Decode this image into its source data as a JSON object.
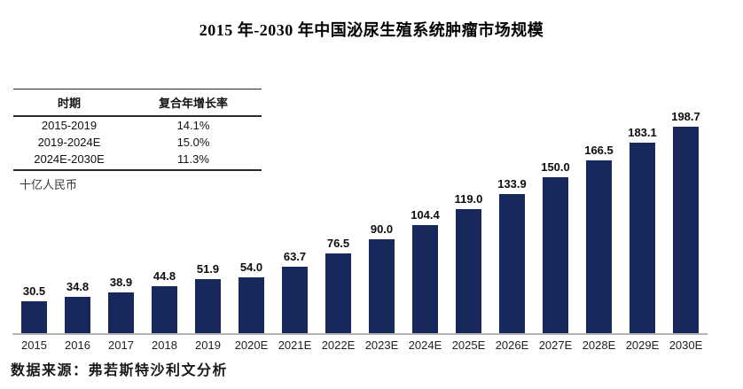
{
  "source_note": "数据来源：弗若斯特沙利文分析",
  "cagr_table": {
    "headers": [
      "时期",
      "复合年增长率"
    ],
    "rows": [
      [
        "2015-2019",
        "14.1%"
      ],
      [
        "2019-2024E",
        "15.0%"
      ],
      [
        "2024E-2030E",
        "11.3%"
      ]
    ]
  },
  "chart_data": {
    "type": "bar",
    "title": "2015 年-2030 年中国泌尿生殖系统肿瘤市场规模",
    "categories": [
      "2015",
      "2016",
      "2017",
      "2018",
      "2019",
      "2020E",
      "2021E",
      "2022E",
      "2023E",
      "2024E",
      "2025E",
      "2026E",
      "2027E",
      "2028E",
      "2029E",
      "2030E"
    ],
    "values": [
      30.5,
      34.8,
      38.9,
      44.8,
      51.9,
      54.0,
      63.7,
      76.5,
      90.0,
      104.4,
      119.0,
      133.9,
      150.0,
      166.5,
      183.1,
      198.7
    ],
    "unit_label": "十亿人民币",
    "ylabel": "十亿人民币",
    "ylim": [
      0,
      210
    ],
    "grid": false,
    "legend": false,
    "value_labels_decimals": 1,
    "bar_color": "#16285C",
    "axis_line_color": "#B3B3B3"
  }
}
